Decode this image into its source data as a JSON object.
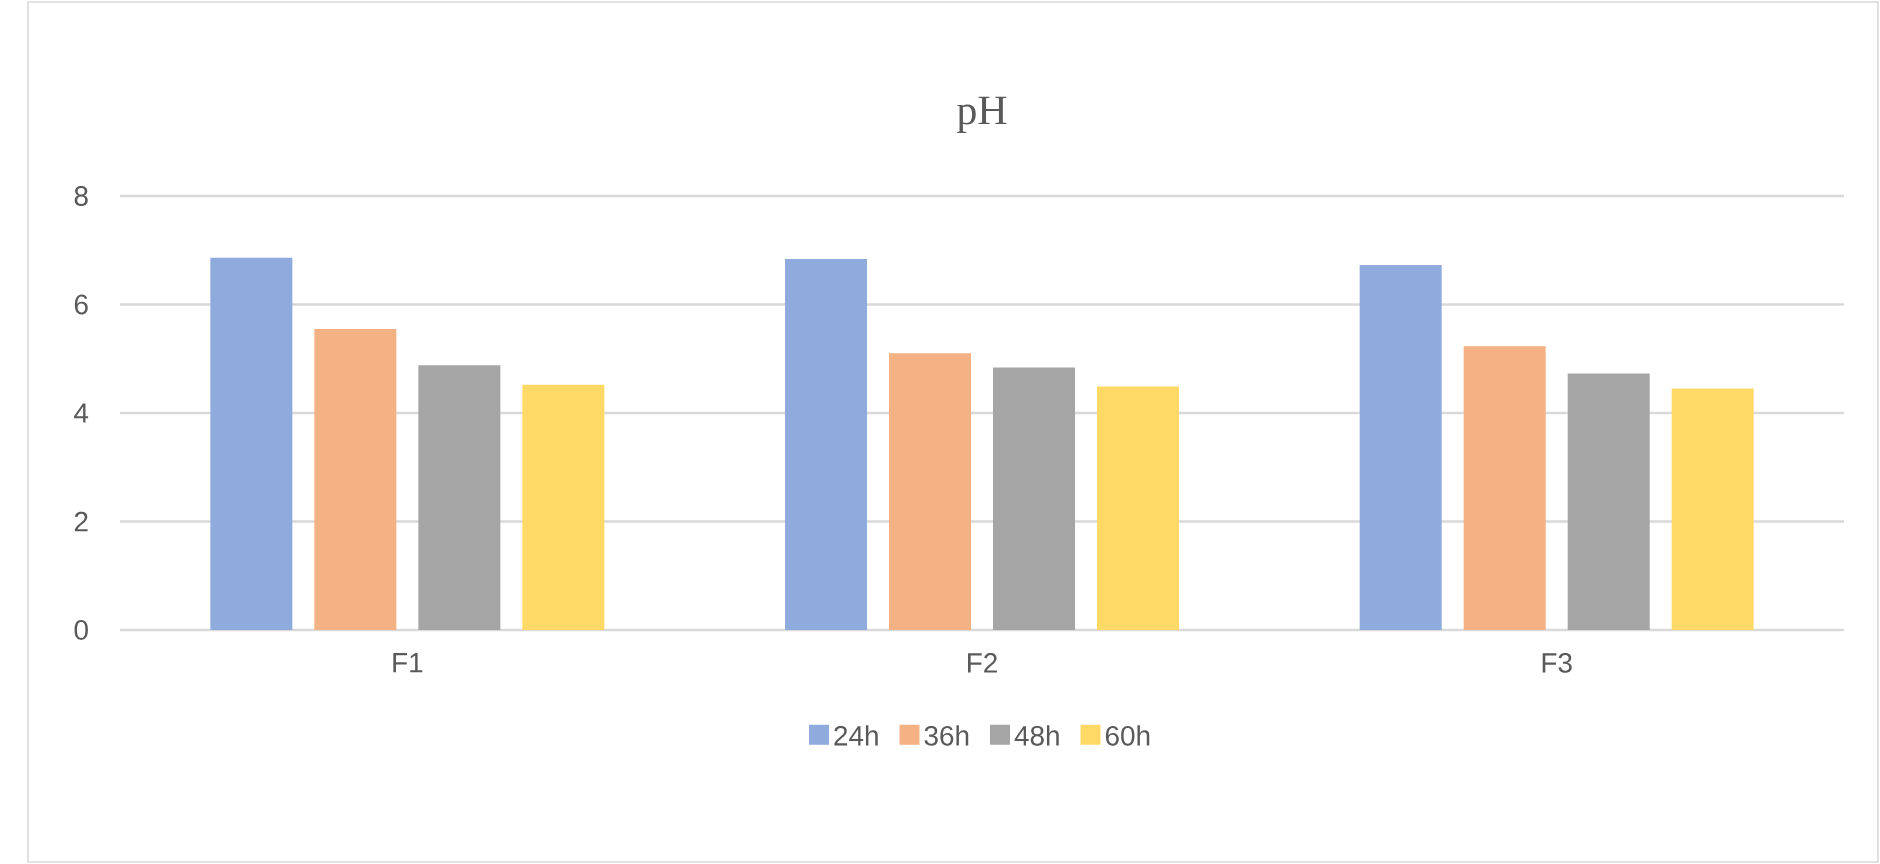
{
  "chart_data": {
    "type": "bar",
    "title": "pH",
    "categories": [
      "F1",
      "F2",
      "F3"
    ],
    "series": [
      {
        "name": "24h",
        "color": "#8faadc",
        "values": [
          6.86,
          6.84,
          6.73
        ]
      },
      {
        "name": "36h",
        "color": "#f4b183",
        "values": [
          5.55,
          5.1,
          5.23
        ]
      },
      {
        "name": "48h",
        "color": "#a5a5a5",
        "values": [
          4.88,
          4.84,
          4.73
        ]
      },
      {
        "name": "60h",
        "color": "#ffd966",
        "values": [
          4.52,
          4.49,
          4.45
        ]
      }
    ],
    "ylim": [
      0,
      8
    ],
    "yticks": [
      0,
      2,
      4,
      6,
      8
    ],
    "grid": "y",
    "legend": "bottom"
  }
}
